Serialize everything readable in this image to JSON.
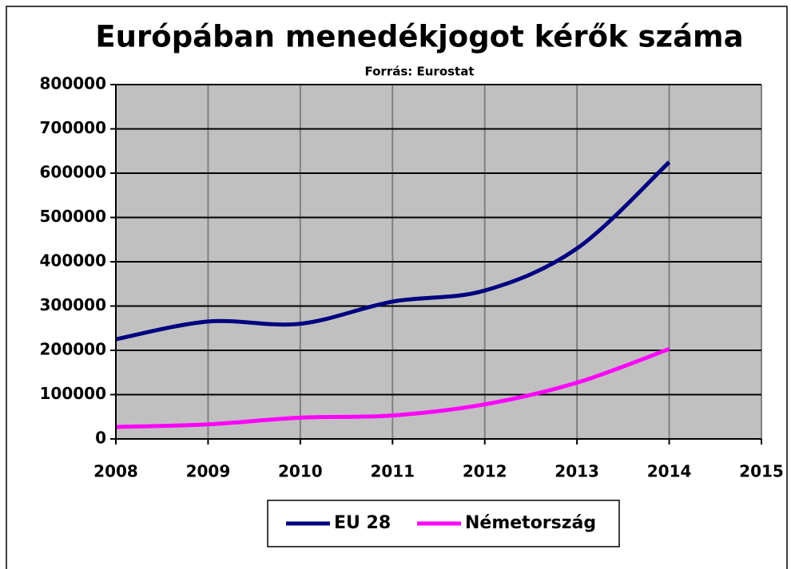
{
  "chart_data": {
    "type": "line",
    "title": "Európában menedékjogot kérők száma",
    "subtitle": "Forrás: Eurostat",
    "x": [
      2008,
      2009,
      2010,
      2011,
      2012,
      2013,
      2014
    ],
    "series": [
      {
        "name": "EU 28",
        "color": "#000080",
        "values": [
          225000,
          265000,
          260000,
          310000,
          335000,
          430000,
          625000
        ]
      },
      {
        "name": "Németország",
        "color": "#ff00ff",
        "values": [
          27000,
          33000,
          48000,
          53000,
          78000,
          127000,
          203000
        ]
      }
    ],
    "xlim": [
      2008,
      2015
    ],
    "xticks": [
      2008,
      2009,
      2010,
      2011,
      2012,
      2013,
      2014,
      2015
    ],
    "ylim": [
      0,
      800000
    ],
    "yticks": [
      0,
      100000,
      200000,
      300000,
      400000,
      500000,
      600000,
      700000,
      800000
    ],
    "grid": true,
    "legend": "bottom"
  }
}
